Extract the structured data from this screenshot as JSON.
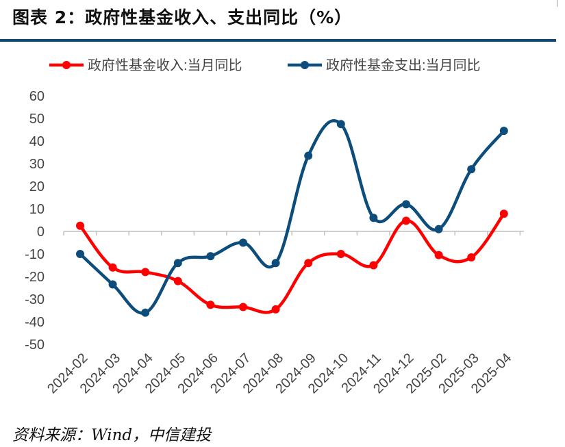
{
  "header": {
    "title": "图表 2：政府性基金收入、支出同比（%）"
  },
  "footer": {
    "source": "资料来源：Wind，中信建投"
  },
  "chart_data": {
    "type": "line",
    "title": "",
    "xlabel": "",
    "ylabel": "",
    "categories": [
      "2024-02",
      "2024-03",
      "2024-04",
      "2024-05",
      "2024-06",
      "2024-07",
      "2024-08",
      "2024-09",
      "2024-10",
      "2024-11",
      "2024-12",
      "2025-02",
      "2025-03",
      "2025-04"
    ],
    "ylim": [
      -50,
      60
    ],
    "yticks": [
      "60",
      "50",
      "40",
      "30",
      "20",
      "10",
      "0",
      "-10",
      "-20",
      "-30",
      "-40",
      "-50"
    ],
    "legend_position": "top",
    "grid": false,
    "series": [
      {
        "name": "政府性基金收入:当月同比",
        "color": "#ff0000",
        "values": [
          2.5,
          -16,
          -18,
          -22,
          -32.5,
          -33.5,
          -34.5,
          -14,
          -10,
          -15,
          4.7,
          -10.5,
          -11.5,
          7.8
        ]
      },
      {
        "name": "政府性基金支出:当月同比",
        "color": "#0d4d7c",
        "values": [
          -10,
          -23.5,
          -36,
          -14,
          -11,
          -5,
          -14,
          33.5,
          47.5,
          6,
          12,
          1,
          27.5,
          44.5
        ]
      }
    ]
  }
}
